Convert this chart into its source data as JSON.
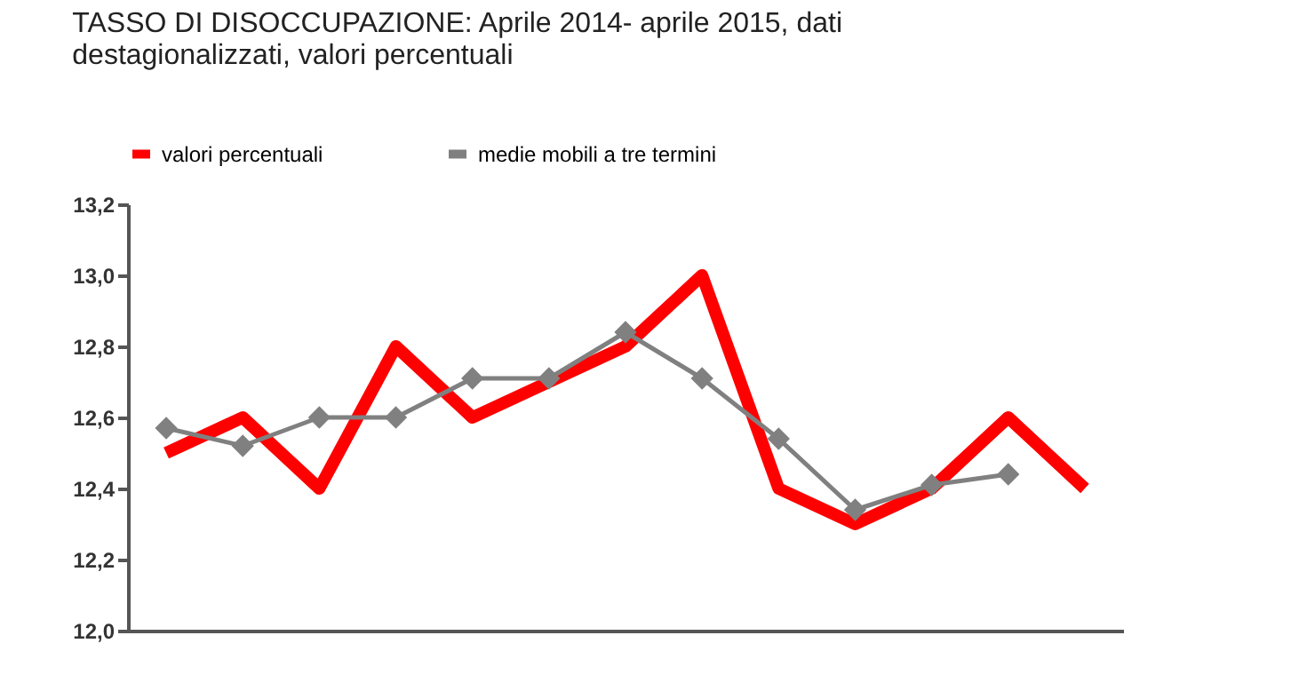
{
  "chart_data": {
    "type": "line",
    "title": [
      "TASSO DI DISOCCUPAZIONE: Aprile 2014- aprile 2015, dati",
      "destagionalizzati, valori percentuali"
    ],
    "categories": [
      null,
      null,
      null,
      null,
      null,
      null,
      null,
      null,
      null,
      null,
      null,
      null,
      null
    ],
    "series": [
      {
        "name": "valori percentuali",
        "color": "#ff0000",
        "marker": "none",
        "values": [
          12.5,
          12.6,
          12.4,
          12.8,
          12.6,
          12.7,
          12.8,
          13.0,
          12.4,
          12.3,
          12.4,
          12.6,
          12.4
        ]
      },
      {
        "name": "medie mobili a tre termini",
        "color": "#808080",
        "marker": "diamond",
        "values": [
          12.57,
          12.52,
          12.6,
          12.6,
          12.71,
          12.71,
          12.84,
          12.71,
          12.54,
          12.34,
          12.41,
          12.44,
          null
        ]
      }
    ],
    "ylim": [
      12.0,
      13.2
    ],
    "yticks": [
      {
        "value": 12.0,
        "label": "12,0"
      },
      {
        "value": 12.2,
        "label": "12,2"
      },
      {
        "value": 12.4,
        "label": "12,4"
      },
      {
        "value": 12.6,
        "label": "12,6"
      },
      {
        "value": 12.8,
        "label": "12,8"
      },
      {
        "value": 13.0,
        "label": "13,0"
      },
      {
        "value": 13.2,
        "label": "13,2"
      }
    ],
    "tick_labels": "y",
    "grid": false,
    "legend": "top"
  }
}
